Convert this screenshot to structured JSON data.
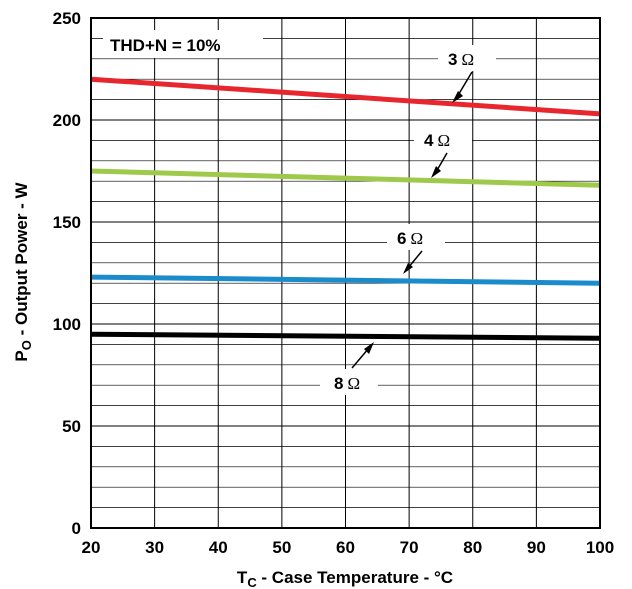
{
  "chart_data": {
    "type": "line",
    "xlabel": "T",
    "xlabel_sub": "C",
    "xlabel_rest": " - Case Temperature - °C",
    "ylabel": "P",
    "ylabel_sub": "O",
    "ylabel_rest": " - Output Power - W",
    "xlim": [
      20,
      100
    ],
    "ylim": [
      0,
      250
    ],
    "x_ticks": [
      "20",
      "30",
      "40",
      "50",
      "60",
      "70",
      "80",
      "90",
      "100"
    ],
    "y_ticks": [
      "0",
      "50",
      "100",
      "150",
      "200",
      "250"
    ],
    "grid": true,
    "condition_label": "THD+N = 10%",
    "series": [
      {
        "name": "3 Ω",
        "color": "#e8262e",
        "x": [
          20,
          100
        ],
        "y": [
          220,
          203
        ]
      },
      {
        "name": "4 Ω",
        "color": "#9ec94a",
        "x": [
          20,
          100
        ],
        "y": [
          175,
          168
        ]
      },
      {
        "name": "6 Ω",
        "color": "#1a8ccc",
        "x": [
          20,
          100
        ],
        "y": [
          123,
          120
        ]
      },
      {
        "name": "8 Ω",
        "color": "#000000",
        "x": [
          20,
          100
        ],
        "y": [
          95,
          93
        ]
      }
    ],
    "labels": [
      {
        "series": "3 Ω",
        "value": "3",
        "unit": "Ω"
      },
      {
        "series": "4 Ω",
        "value": "4",
        "unit": "Ω"
      },
      {
        "series": "6 Ω",
        "value": "6",
        "unit": "Ω"
      },
      {
        "series": "8 Ω",
        "value": "8",
        "unit": "Ω"
      }
    ]
  }
}
